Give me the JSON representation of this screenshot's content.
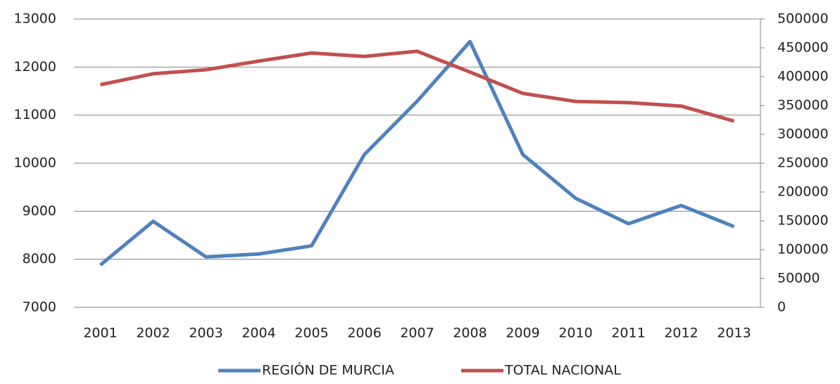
{
  "chart_data": {
    "type": "line",
    "x": [
      "2001",
      "2002",
      "2003",
      "2004",
      "2005",
      "2006",
      "2007",
      "2008",
      "2009",
      "2010",
      "2011",
      "2012",
      "2013"
    ],
    "series": [
      {
        "name": "REGIÓN DE MURCIA",
        "color": "#4f81bd",
        "values": [
          7880,
          8790,
          8050,
          8110,
          8280,
          10180,
          11290,
          12530,
          10180,
          9270,
          8740,
          9120,
          8680
        ]
      },
      {
        "name": "TOTAL NACIONAL",
        "color": "#c0504d",
        "axis": "y2",
        "values": [
          386000,
          405000,
          412000,
          427000,
          441000,
          435000,
          444000,
          408000,
          371000,
          357000,
          355000,
          349000,
          323000
        ]
      }
    ],
    "ylim": [
      7000,
      13000
    ],
    "yticks": [
      7000,
      8000,
      9000,
      10000,
      11000,
      12000,
      13000
    ],
    "y2lim": [
      0,
      500000
    ],
    "y2ticks": [
      0,
      50000,
      100000,
      150000,
      200000,
      250000,
      300000,
      350000,
      400000,
      450000,
      500000
    ],
    "grid": true,
    "legend": "bottom"
  }
}
